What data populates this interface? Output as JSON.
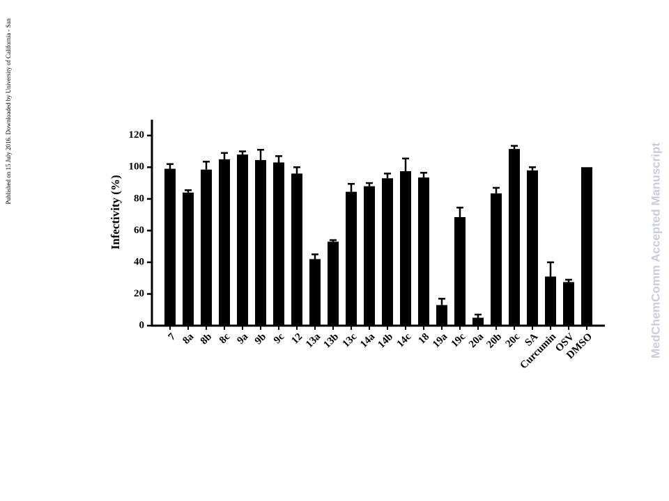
{
  "margin_note": "Published on 15 July 2016. Downloaded by University of California - San",
  "watermark": "MedChemComm Accepted Manuscript",
  "chart_data": {
    "type": "bar",
    "ylabel": "Infectivity (%)",
    "categories": [
      "7",
      "8a",
      "8b",
      "8c",
      "9a",
      "9b",
      "9c",
      "12",
      "13a",
      "13b",
      "13c",
      "14a",
      "14b",
      "14c",
      "18",
      "19a",
      "19c",
      "20a",
      "20b",
      "20c",
      "SA",
      "Curcumin",
      "OSV",
      "DMSO"
    ],
    "values": [
      99,
      84,
      98.5,
      105,
      108,
      104.5,
      103,
      96,
      42,
      53,
      84.5,
      88,
      93,
      97.5,
      93.5,
      13,
      68.5,
      5,
      83.5,
      111.5,
      98,
      31,
      27.5,
      100
    ],
    "errors": [
      3,
      1.5,
      5,
      4,
      2,
      6.5,
      4,
      4,
      3,
      1,
      5,
      2,
      3,
      8,
      3,
      4,
      6,
      2,
      3.5,
      2,
      2,
      9,
      1.5,
      null
    ],
    "color": "#000000",
    "ylim": [
      0,
      130
    ],
    "yticks": [
      0,
      20,
      40,
      60,
      80,
      100,
      120
    ],
    "grid": false
  }
}
